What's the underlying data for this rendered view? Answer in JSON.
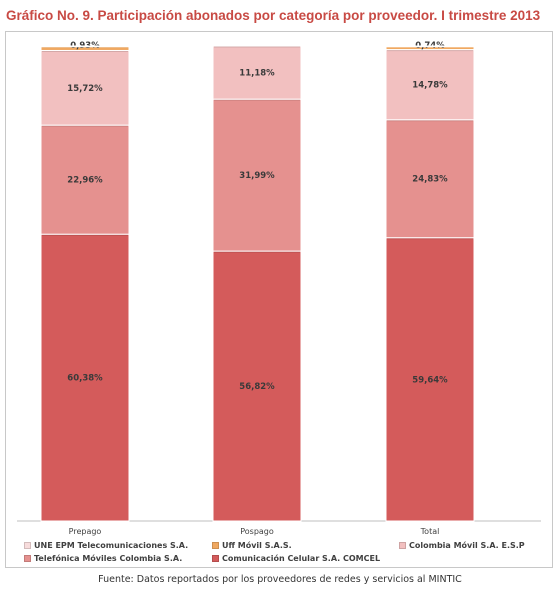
{
  "title": "Gráfico No. 9. Participación abonados por categoría por proveedor. I trimestre 2013",
  "source": "Fuente: Datos reportados por los proveedores de redes y servicios al MINTIC",
  "chart_data": {
    "type": "bar",
    "stacked": true,
    "percent_stacked": true,
    "categories": [
      "Prepago",
      "Pospago",
      "Total"
    ],
    "ylim": [
      0,
      100
    ],
    "grid": false,
    "legend_position": "bottom",
    "series": [
      {
        "name": "Comunicación Celular S.A. COMCEL",
        "color": "#d45b5b",
        "values": [
          60.38,
          56.82,
          59.64
        ],
        "labels": [
          "60,38%",
          "56,82%",
          "59,64%"
        ]
      },
      {
        "name": "Telefónica Móviles Colombia S.A.",
        "color": "#e5918f",
        "values": [
          22.96,
          31.99,
          24.83
        ],
        "labels": [
          "22,96%",
          "31,99%",
          "24,83%"
        ]
      },
      {
        "name": "Colombia Móvil S.A. E.S.P",
        "color": "#f2c0c0",
        "values": [
          15.72,
          11.18,
          14.78
        ],
        "labels": [
          "15,72%",
          "11,18%",
          "14,78%"
        ]
      },
      {
        "name": "Uff Móvil S.A.S.",
        "color": "#f0a860",
        "values": [
          0.93,
          0,
          0.74
        ],
        "labels": [
          "0,93%",
          "",
          "0,74%"
        ]
      },
      {
        "name": "UNE EPM Telecomunicaciones S.A.",
        "color": "#f7dcdc",
        "values": [
          0.01,
          0,
          0.01
        ],
        "labels": [
          "",
          "",
          ""
        ]
      }
    ]
  },
  "legend": {
    "items": [
      {
        "label": "UNE EPM Telecomunicaciones S.A.",
        "color": "#f7dcdc"
      },
      {
        "label": "Uff Móvil S.A.S.",
        "color": "#f0a860"
      },
      {
        "label": "Colombia Móvil S.A. E.S.P",
        "color": "#f2c0c0"
      },
      {
        "label": "Telefónica Móviles Colombia S.A.",
        "color": "#e5918f"
      },
      {
        "label": "Comunicación Celular S.A. COMCEL",
        "color": "#d45b5b"
      }
    ]
  }
}
